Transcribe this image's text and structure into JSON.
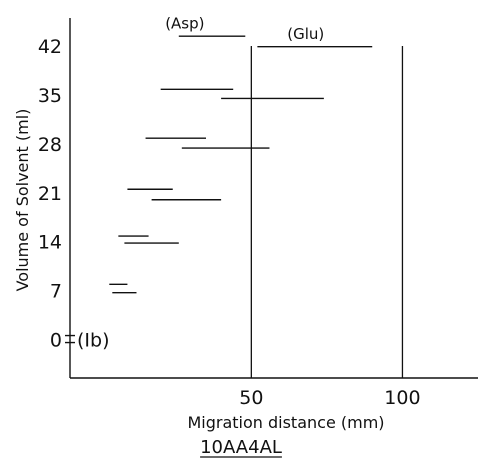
{
  "chart_data": {
    "type": "bar",
    "subtype": "horizontal-range-segments",
    "title": "",
    "caption": "10AA4AL",
    "xlabel": "Migration distance (mm)",
    "ylabel": "Volume of Solvent (ml)",
    "xlim": [
      -10,
      125
    ],
    "ylim": [
      -5.5,
      46
    ],
    "x_ticks": [
      50,
      100
    ],
    "y_ticks": [
      0,
      7,
      14,
      21,
      28,
      35,
      42
    ],
    "grid": false,
    "legend": "none",
    "marker_label": "(Ib)",
    "reference_lines_x": [
      50,
      100
    ],
    "annotations": [
      {
        "label": "(Asp)",
        "x": 28,
        "y": 44.5
      },
      {
        "label": "(Glu)",
        "x": 68,
        "y": 43.0
      }
    ],
    "groups": [
      {
        "volume": 0,
        "segments": []
      },
      {
        "volume": 7,
        "segments": [
          {
            "start": 3,
            "end": 9,
            "y": 7.9
          },
          {
            "start": 4,
            "end": 12,
            "y": 6.7
          }
        ]
      },
      {
        "volume": 14,
        "segments": [
          {
            "start": 6,
            "end": 16,
            "y": 14.8
          },
          {
            "start": 8,
            "end": 26,
            "y": 13.8
          }
        ]
      },
      {
        "volume": 21,
        "segments": [
          {
            "start": 9,
            "end": 24,
            "y": 21.5
          },
          {
            "start": 17,
            "end": 40,
            "y": 20.0
          }
        ]
      },
      {
        "volume": 28,
        "segments": [
          {
            "start": 15,
            "end": 35,
            "y": 28.8
          },
          {
            "start": 27,
            "end": 56,
            "y": 27.4
          }
        ]
      },
      {
        "volume": 35,
        "segments": [
          {
            "start": 20,
            "end": 44,
            "y": 35.8
          },
          {
            "start": 40,
            "end": 74,
            "y": 34.5
          }
        ]
      },
      {
        "volume": 42,
        "segments": [
          {
            "start": 26,
            "end": 48,
            "y": 43.4
          },
          {
            "start": 52,
            "end": 90,
            "y": 41.9
          }
        ]
      }
    ]
  }
}
